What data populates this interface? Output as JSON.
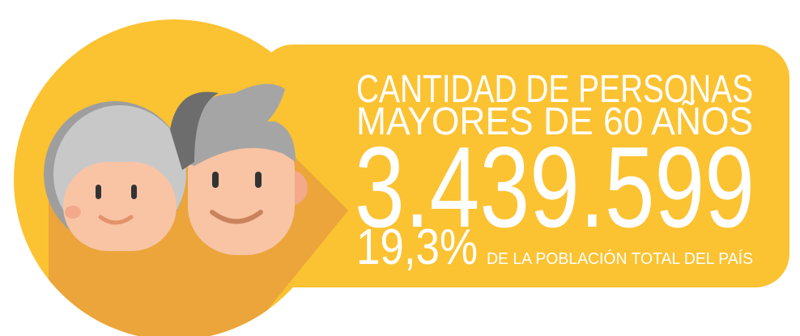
{
  "heading": {
    "line1": "CANTIDAD DE PERSONAS",
    "line2": "MAYORES DE 60 AÑOS"
  },
  "total": "3.439.599",
  "share": {
    "percent": "19,3%",
    "caption": "DE LA POBLACIÓN TOTAL DEL PAÍS"
  }
}
